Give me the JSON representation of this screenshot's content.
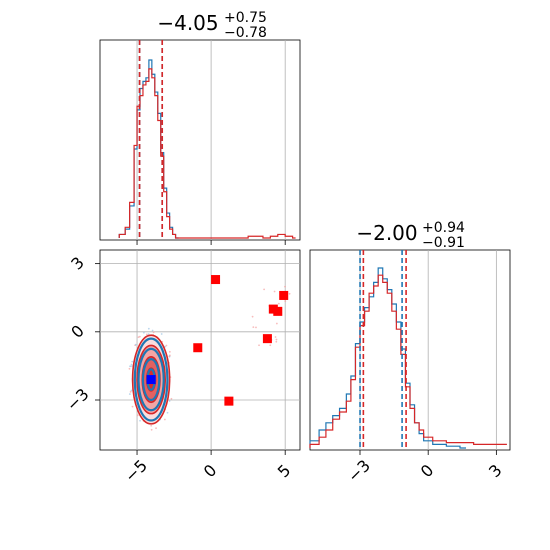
{
  "chart_data": [
    {
      "type": "histogram",
      "panel": "marginal-x",
      "title": {
        "main": "−4.05",
        "sup": "+0.75",
        "sub": "−0.78"
      },
      "xlim": [
        -7.5,
        6
      ],
      "xticks": [
        -5,
        0,
        5
      ],
      "grid": true,
      "series": [
        {
          "color": "#1f77b4",
          "bins": [
            [
              -6.2,
              0.02
            ],
            [
              -5.8,
              0.05
            ],
            [
              -5.5,
              0.18
            ],
            [
              -5.2,
              0.5
            ],
            [
              -5.0,
              0.72
            ],
            [
              -4.8,
              0.84
            ],
            [
              -4.6,
              0.88
            ],
            [
              -4.4,
              0.9
            ],
            [
              -4.2,
              1.0
            ],
            [
              -4.0,
              0.92
            ],
            [
              -3.8,
              0.82
            ],
            [
              -3.6,
              0.7
            ],
            [
              -3.4,
              0.48
            ],
            [
              -3.2,
              0.28
            ],
            [
              -3.0,
              0.14
            ],
            [
              -2.8,
              0.06
            ],
            [
              -2.6,
              0.02
            ],
            [
              -2.4,
              0.0
            ]
          ],
          "quantiles": [
            -4.83,
            -4.05,
            -3.3
          ]
        },
        {
          "color": "#d62728",
          "bins": [
            [
              -6.2,
              0.02
            ],
            [
              -5.8,
              0.06
            ],
            [
              -5.5,
              0.2
            ],
            [
              -5.2,
              0.52
            ],
            [
              -5.0,
              0.74
            ],
            [
              -4.8,
              0.8
            ],
            [
              -4.6,
              0.86
            ],
            [
              -4.4,
              0.88
            ],
            [
              -4.2,
              0.95
            ],
            [
              -4.0,
              0.9
            ],
            [
              -3.8,
              0.8
            ],
            [
              -3.6,
              0.66
            ],
            [
              -3.4,
              0.46
            ],
            [
              -3.2,
              0.26
            ],
            [
              -3.0,
              0.12
            ],
            [
              -2.8,
              0.05
            ],
            [
              -2.6,
              0.02
            ],
            [
              -2.4,
              0.0
            ],
            [
              2.5,
              0.01
            ],
            [
              3.5,
              0.0
            ],
            [
              4.0,
              0.01
            ],
            [
              4.5,
              0.02
            ],
            [
              5.0,
              0.01
            ],
            [
              5.5,
              0.0
            ]
          ],
          "quantiles": [
            -4.83,
            -4.05,
            -3.3
          ]
        }
      ]
    },
    {
      "type": "scatter",
      "panel": "joint",
      "xlim": [
        -7.5,
        6
      ],
      "ylim": [
        -5.2,
        3.6
      ],
      "xticks": [
        -5,
        0,
        5
      ],
      "yticks": [
        -3,
        0,
        3
      ],
      "grid": true,
      "contours": [
        {
          "color": "#d62728",
          "cx": -4.05,
          "cy": -2.1,
          "levels": [
            [
              1.25,
              1.95
            ],
            [
              0.95,
              1.5
            ],
            [
              0.6,
              1.0
            ],
            [
              0.3,
              0.5
            ]
          ]
        },
        {
          "color": "#1f77b4",
          "cx": -4.05,
          "cy": -2.1,
          "levels": [
            [
              1.1,
              1.8
            ],
            [
              0.85,
              1.35
            ],
            [
              0.55,
              0.9
            ],
            [
              0.25,
              0.45
            ]
          ]
        }
      ],
      "markers_red": [
        [
          0.3,
          2.3
        ],
        [
          -0.9,
          -0.7
        ],
        [
          1.2,
          -3.05
        ],
        [
          3.8,
          -0.3
        ],
        [
          4.2,
          1.0
        ],
        [
          4.5,
          0.9
        ],
        [
          4.9,
          1.6
        ]
      ],
      "markers_blue": [
        [
          -4.05,
          -2.1
        ]
      ]
    },
    {
      "type": "histogram",
      "panel": "marginal-y",
      "title": {
        "main": "−2.00",
        "sup": "+0.94",
        "sub": "−0.91"
      },
      "xlim": [
        -5.2,
        3.6
      ],
      "xticks": [
        -3,
        0,
        3
      ],
      "grid": true,
      "series": [
        {
          "color": "#1f77b4",
          "bins": [
            [
              -5.2,
              0.04
            ],
            [
              -4.8,
              0.1
            ],
            [
              -4.5,
              0.14
            ],
            [
              -4.2,
              0.18
            ],
            [
              -3.9,
              0.22
            ],
            [
              -3.6,
              0.3
            ],
            [
              -3.4,
              0.4
            ],
            [
              -3.2,
              0.58
            ],
            [
              -3.0,
              0.7
            ],
            [
              -2.8,
              0.78
            ],
            [
              -2.6,
              0.84
            ],
            [
              -2.4,
              0.92
            ],
            [
              -2.2,
              1.0
            ],
            [
              -2.0,
              0.94
            ],
            [
              -1.8,
              0.88
            ],
            [
              -1.6,
              0.8
            ],
            [
              -1.4,
              0.7
            ],
            [
              -1.2,
              0.55
            ],
            [
              -1.0,
              0.36
            ],
            [
              -0.8,
              0.24
            ],
            [
              -0.6,
              0.14
            ],
            [
              -0.4,
              0.08
            ],
            [
              -0.2,
              0.04
            ],
            [
              0.2,
              0.02
            ],
            [
              0.8,
              0.01
            ],
            [
              1.4,
              0.0
            ]
          ],
          "quantiles": [
            -2.91,
            -2.0,
            -1.06
          ]
        },
        {
          "color": "#d62728",
          "bins": [
            [
              -5.2,
              0.02
            ],
            [
              -4.8,
              0.06
            ],
            [
              -4.5,
              0.1
            ],
            [
              -4.2,
              0.16
            ],
            [
              -3.9,
              0.2
            ],
            [
              -3.6,
              0.26
            ],
            [
              -3.4,
              0.38
            ],
            [
              -3.2,
              0.56
            ],
            [
              -3.0,
              0.68
            ],
            [
              -2.8,
              0.76
            ],
            [
              -2.6,
              0.86
            ],
            [
              -2.4,
              0.9
            ],
            [
              -2.2,
              0.96
            ],
            [
              -2.0,
              0.92
            ],
            [
              -1.8,
              0.86
            ],
            [
              -1.6,
              0.76
            ],
            [
              -1.4,
              0.66
            ],
            [
              -1.2,
              0.52
            ],
            [
              -1.0,
              0.34
            ],
            [
              -0.8,
              0.22
            ],
            [
              -0.6,
              0.14
            ],
            [
              -0.4,
              0.1
            ],
            [
              -0.2,
              0.06
            ],
            [
              0.2,
              0.04
            ],
            [
              0.8,
              0.03
            ],
            [
              1.4,
              0.03
            ],
            [
              2.0,
              0.02
            ],
            [
              2.6,
              0.02
            ],
            [
              3.2,
              0.02
            ]
          ],
          "quantiles": [
            -2.94,
            -2.0,
            -1.06
          ]
        }
      ]
    }
  ]
}
